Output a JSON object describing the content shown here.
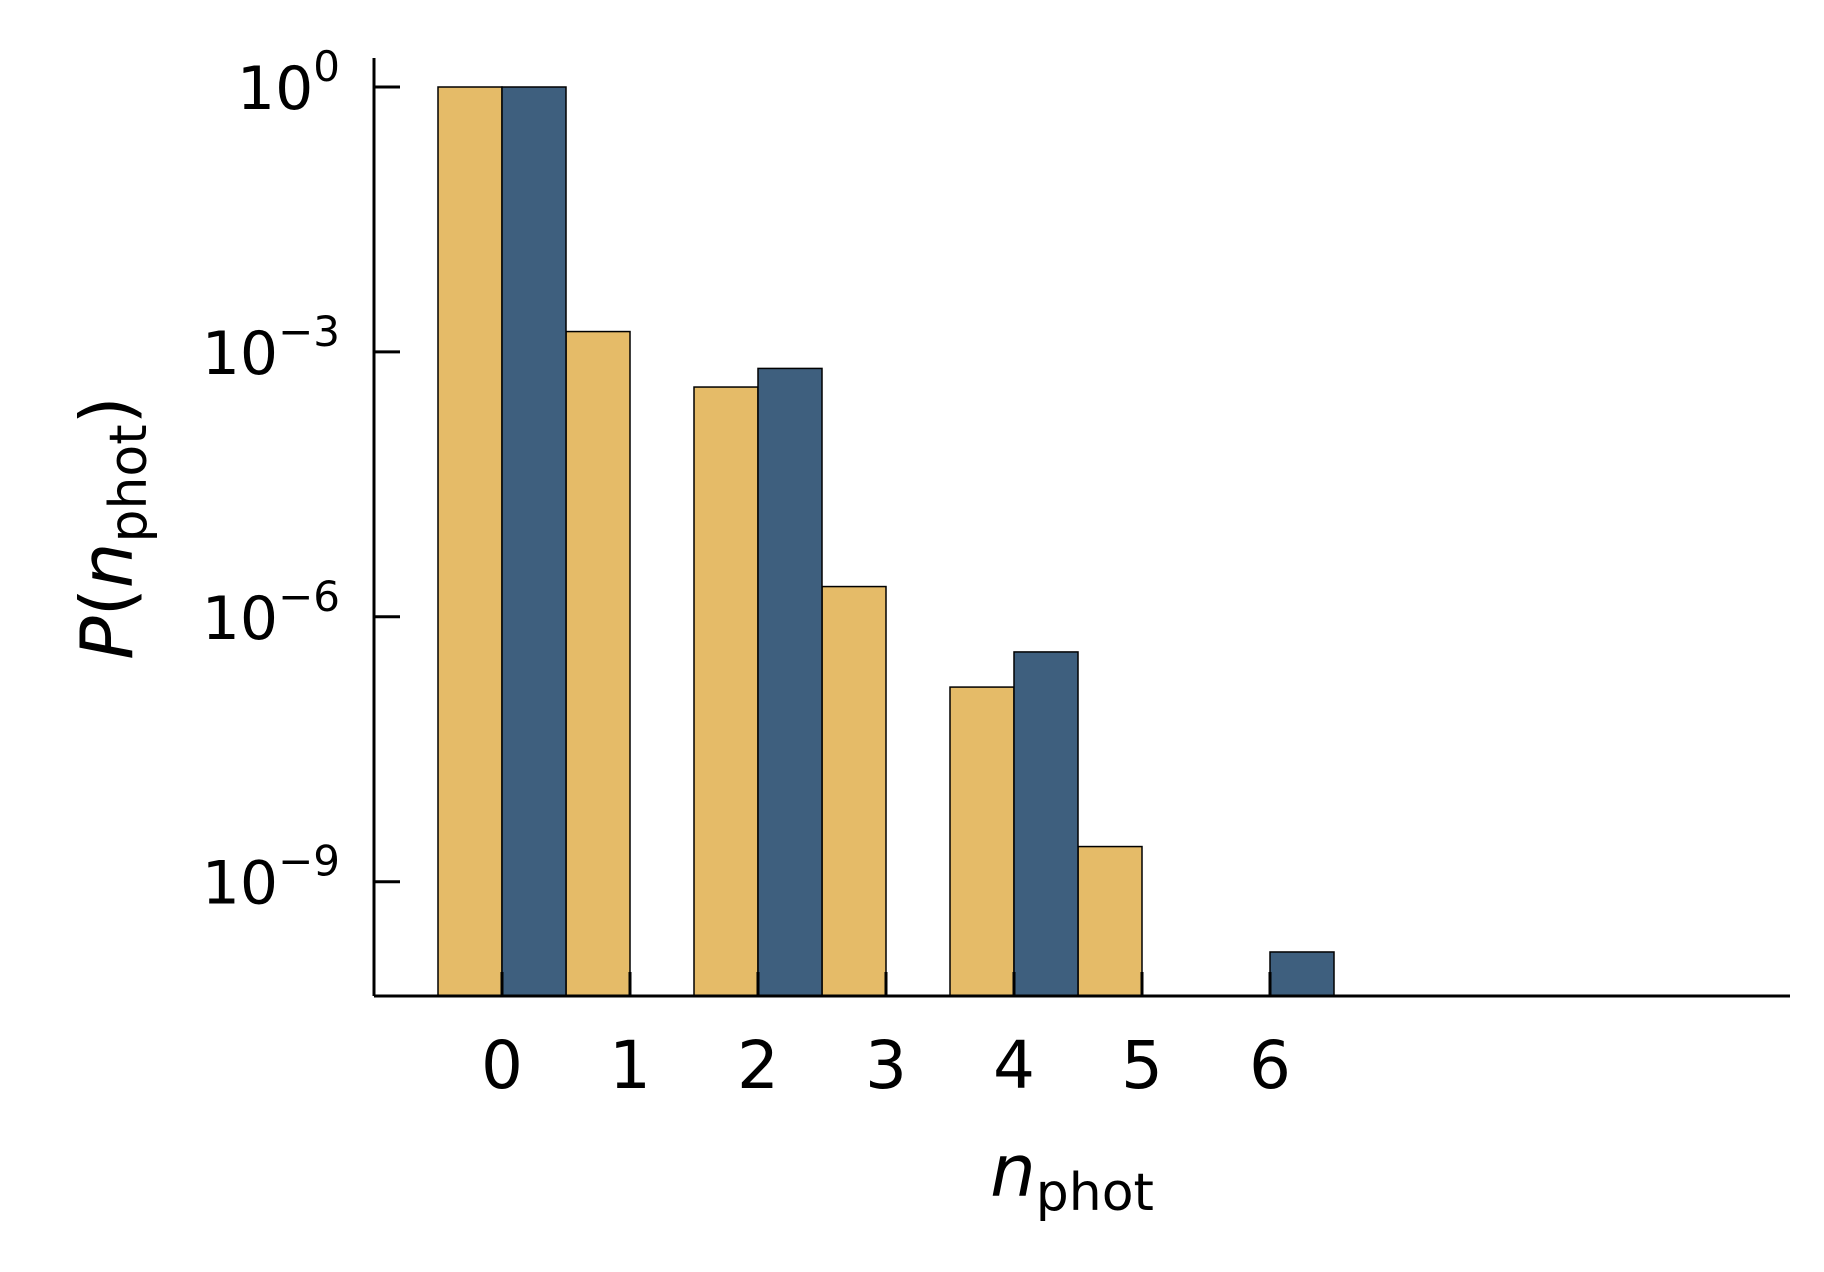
{
  "chart_data": {
    "type": "bar",
    "y_scale": "log",
    "grid": false,
    "legend": "none",
    "xlabel": {
      "base": "n",
      "sub": "phot"
    },
    "ylabel": {
      "prefix": "P(",
      "base": "n",
      "sub": "phot",
      "suffix": ")"
    },
    "ylim": [
      1e-11,
      1
    ],
    "x_ticks": [
      "0",
      "1",
      "2",
      "3",
      "4",
      "5",
      "6"
    ],
    "y_ticks": [
      {
        "value": 1,
        "mantissa": "10",
        "exp": "0"
      },
      {
        "value": 0.001,
        "mantissa": "10",
        "exp": "−3"
      },
      {
        "value": 1e-06,
        "mantissa": "10",
        "exp": "−6"
      },
      {
        "value": 1e-09,
        "mantissa": "10",
        "exp": "−9"
      }
    ],
    "series": [
      {
        "color": "#E5BB68",
        "points": [
          {
            "x": 0,
            "y": 1
          },
          {
            "x": 1,
            "y": 0.0017
          },
          {
            "x": 2,
            "y": 0.0004
          },
          {
            "x": 3,
            "y": 2.2e-06
          },
          {
            "x": 4,
            "y": 1.6e-07
          },
          {
            "x": 5,
            "y": 2.5e-09
          },
          {
            "x": 6,
            "y": 4.6e-11
          }
        ]
      },
      {
        "color": "#3E5F7E",
        "points": [
          {
            "x": 0,
            "y": 1
          },
          {
            "x": 2,
            "y": 0.00065
          },
          {
            "x": 4,
            "y": 4e-07
          },
          {
            "x": 6,
            "y": 1.6e-10
          }
        ]
      }
    ]
  }
}
